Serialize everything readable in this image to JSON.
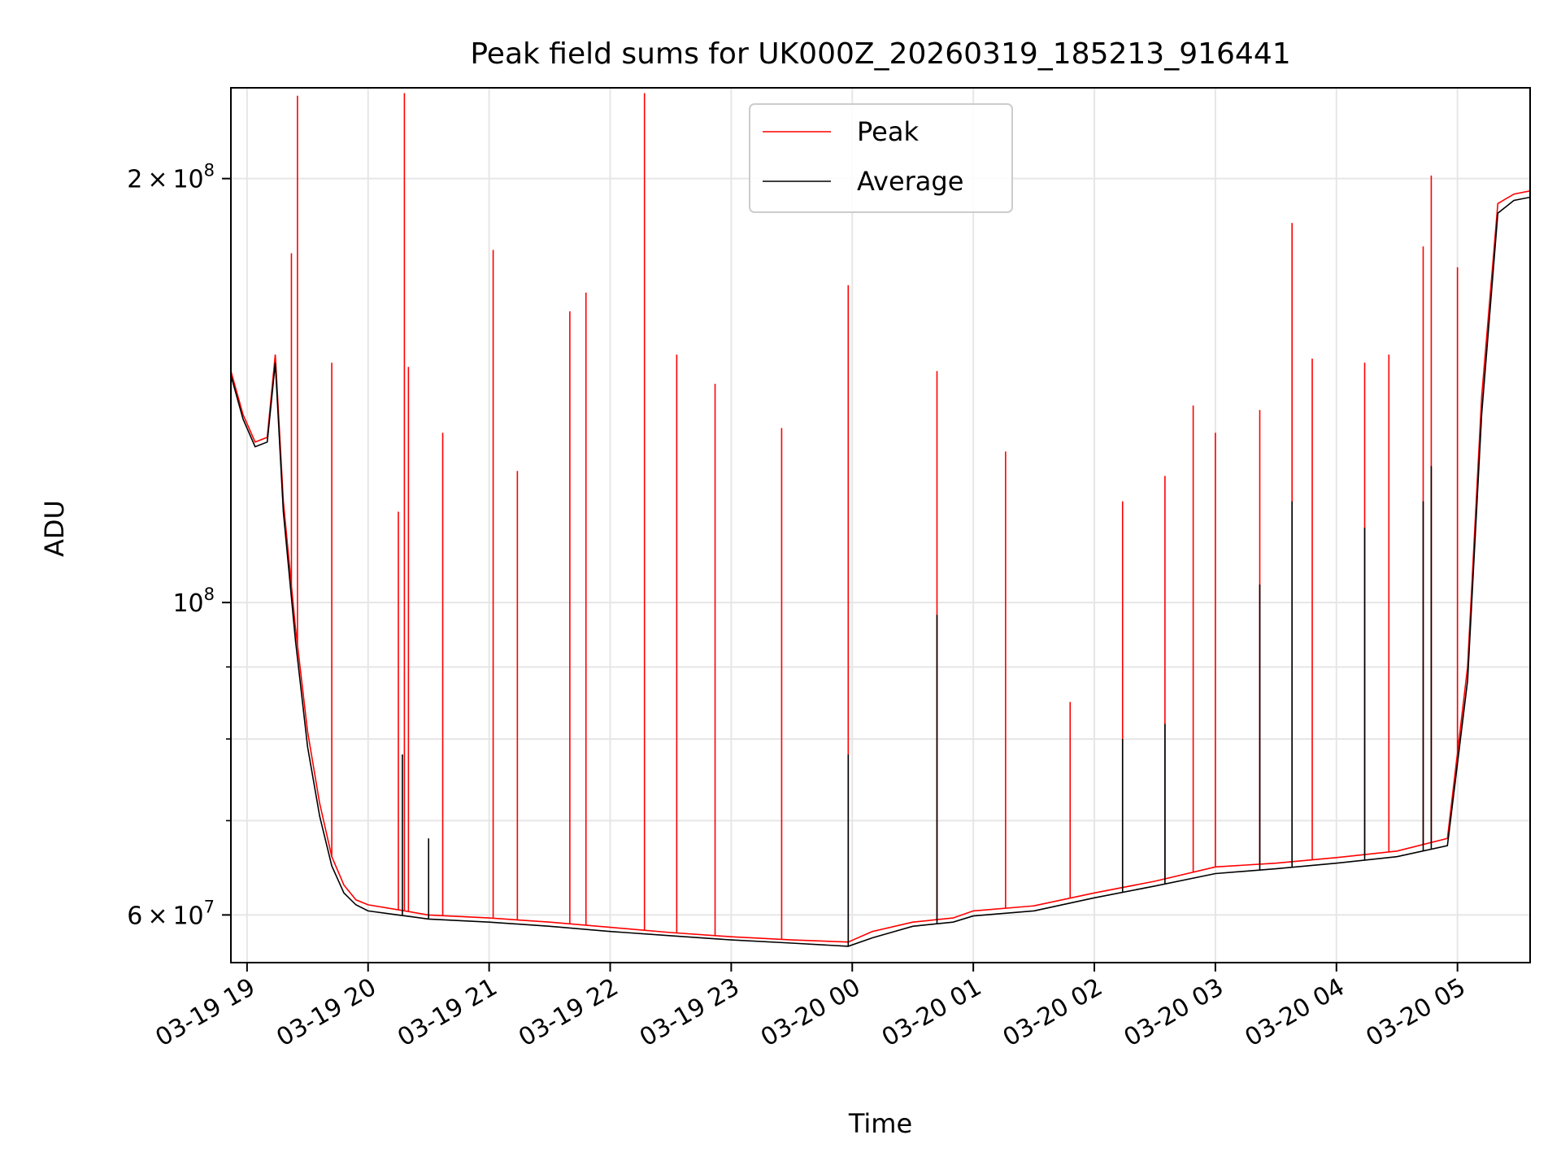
{
  "chart_data": {
    "type": "line",
    "title": "Peak field sums for UK000Z_20260319_185213_916441",
    "xlabel": "Time",
    "ylabel": "ADU",
    "yscale": "log",
    "ylim": [
      55500000,
      232000000
    ],
    "xlim": [
      "2026-03-19 18:52",
      "2026-03-20 05:36"
    ],
    "grid": true,
    "legend_position": "upper center",
    "x_ticks": [
      {
        "t": "2026-03-19 19:00",
        "label": "03-19 19"
      },
      {
        "t": "2026-03-19 20:00",
        "label": "03-19 20"
      },
      {
        "t": "2026-03-19 21:00",
        "label": "03-19 21"
      },
      {
        "t": "2026-03-19 22:00",
        "label": "03-19 22"
      },
      {
        "t": "2026-03-19 23:00",
        "label": "03-19 23"
      },
      {
        "t": "2026-03-20 00:00",
        "label": "03-20 00"
      },
      {
        "t": "2026-03-20 01:00",
        "label": "03-20 01"
      },
      {
        "t": "2026-03-20 02:00",
        "label": "03-20 02"
      },
      {
        "t": "2026-03-20 03:00",
        "label": "03-20 03"
      },
      {
        "t": "2026-03-20 04:00",
        "label": "03-20 04"
      },
      {
        "t": "2026-03-20 05:00",
        "label": "03-20 05"
      }
    ],
    "y_major_ticks": [
      {
        "value": 60000000,
        "mantissa": "6",
        "exp": "7"
      },
      {
        "value": 100000000,
        "mantissa": "",
        "exp": "8"
      },
      {
        "value": 200000000,
        "mantissa": "2",
        "exp": "8"
      }
    ],
    "y_minor_ticks": [
      70000000,
      80000000,
      90000000
    ],
    "series": [
      {
        "name": "Peak",
        "color": "#ff0000",
        "data": [
          [
            "2026-03-19 18:52",
            146000000
          ],
          [
            "2026-03-19 18:58",
            136000000
          ],
          [
            "2026-03-19 19:04",
            130000000
          ],
          [
            "2026-03-19 19:10",
            131000000
          ],
          [
            "2026-03-19 19:14",
            150000000
          ],
          [
            "2026-03-19 19:18",
            118000000
          ],
          [
            "2026-03-19 19:24",
            96000000
          ],
          [
            "2026-03-19 19:30",
            81000000
          ],
          [
            "2026-03-19 19:36",
            72000000
          ],
          [
            "2026-03-19 19:42",
            66000000
          ],
          [
            "2026-03-19 19:48",
            63000000
          ],
          [
            "2026-03-19 19:54",
            61500000
          ],
          [
            "2026-03-19 20:00",
            61000000
          ],
          [
            "2026-03-19 20:15",
            60500000
          ],
          [
            "2026-03-19 20:30",
            60000000
          ],
          [
            "2026-03-19 21:00",
            59700000
          ],
          [
            "2026-03-19 21:30",
            59300000
          ],
          [
            "2026-03-19 22:00",
            58800000
          ],
          [
            "2026-03-19 22:30",
            58300000
          ],
          [
            "2026-03-19 23:00",
            57900000
          ],
          [
            "2026-03-19 23:30",
            57600000
          ],
          [
            "2026-03-19 23:58",
            57400000
          ],
          [
            "2026-03-20 00:10",
            58400000
          ],
          [
            "2026-03-20 00:30",
            59300000
          ],
          [
            "2026-03-20 00:50",
            59700000
          ],
          [
            "2026-03-20 01:00",
            60400000
          ],
          [
            "2026-03-20 01:30",
            60900000
          ],
          [
            "2026-03-20 02:00",
            62200000
          ],
          [
            "2026-03-20 02:30",
            63400000
          ],
          [
            "2026-03-20 03:00",
            64900000
          ],
          [
            "2026-03-20 03:30",
            65300000
          ],
          [
            "2026-03-20 04:00",
            65900000
          ],
          [
            "2026-03-20 04:30",
            66600000
          ],
          [
            "2026-03-20 04:55",
            68000000
          ],
          [
            "2026-03-20 05:05",
            90000000
          ],
          [
            "2026-03-20 05:12",
            140000000
          ],
          [
            "2026-03-20 05:20",
            192000000
          ],
          [
            "2026-03-20 05:28",
            195000000
          ],
          [
            "2026-03-20 05:36",
            196000000
          ]
        ],
        "spikes": [
          [
            "2026-03-19 19:22",
            177000000
          ],
          [
            "2026-03-19 19:25",
            229000000
          ],
          [
            "2026-03-19 19:42",
            148000000
          ],
          [
            "2026-03-19 20:15",
            116000000
          ],
          [
            "2026-03-19 20:18",
            230000000
          ],
          [
            "2026-03-19 20:20",
            147000000
          ],
          [
            "2026-03-19 20:37",
            132000000
          ],
          [
            "2026-03-19 21:02",
            178000000
          ],
          [
            "2026-03-19 21:14",
            124000000
          ],
          [
            "2026-03-19 21:40",
            161000000
          ],
          [
            "2026-03-19 21:48",
            166000000
          ],
          [
            "2026-03-19 22:17",
            230000000
          ],
          [
            "2026-03-19 22:33",
            150000000
          ],
          [
            "2026-03-19 22:52",
            143000000
          ],
          [
            "2026-03-19 23:25",
            133000000
          ],
          [
            "2026-03-19 23:58",
            168000000
          ],
          [
            "2026-03-20 00:42",
            146000000
          ],
          [
            "2026-03-20 01:16",
            128000000
          ],
          [
            "2026-03-20 01:48",
            85000000
          ],
          [
            "2026-03-20 02:14",
            118000000
          ],
          [
            "2026-03-20 02:35",
            123000000
          ],
          [
            "2026-03-20 02:49",
            138000000
          ],
          [
            "2026-03-20 03:00",
            132000000
          ],
          [
            "2026-03-20 03:22",
            137000000
          ],
          [
            "2026-03-20 03:38",
            186000000
          ],
          [
            "2026-03-20 03:48",
            149000000
          ],
          [
            "2026-03-20 04:14",
            148000000
          ],
          [
            "2026-03-20 04:26",
            150000000
          ],
          [
            "2026-03-20 04:43",
            179000000
          ],
          [
            "2026-03-20 04:47",
            201000000
          ],
          [
            "2026-03-20 05:00",
            173000000
          ]
        ]
      },
      {
        "name": "Average",
        "color": "#000000",
        "data": [
          [
            "2026-03-19 18:52",
            145000000
          ],
          [
            "2026-03-19 18:58",
            135000000
          ],
          [
            "2026-03-19 19:04",
            129000000
          ],
          [
            "2026-03-19 19:10",
            130000000
          ],
          [
            "2026-03-19 19:14",
            148000000
          ],
          [
            "2026-03-19 19:18",
            116000000
          ],
          [
            "2026-03-19 19:24",
            94000000
          ],
          [
            "2026-03-19 19:30",
            79000000
          ],
          [
            "2026-03-19 19:36",
            70500000
          ],
          [
            "2026-03-19 19:42",
            65000000
          ],
          [
            "2026-03-19 19:48",
            62200000
          ],
          [
            "2026-03-19 19:54",
            61000000
          ],
          [
            "2026-03-19 20:00",
            60400000
          ],
          [
            "2026-03-19 20:15",
            60000000
          ],
          [
            "2026-03-19 20:30",
            59600000
          ],
          [
            "2026-03-19 21:00",
            59300000
          ],
          [
            "2026-03-19 21:30",
            58900000
          ],
          [
            "2026-03-19 22:00",
            58400000
          ],
          [
            "2026-03-19 22:30",
            58000000
          ],
          [
            "2026-03-19 23:00",
            57600000
          ],
          [
            "2026-03-19 23:30",
            57300000
          ],
          [
            "2026-03-19 23:58",
            57000000
          ],
          [
            "2026-03-20 00:10",
            57800000
          ],
          [
            "2026-03-20 00:30",
            58900000
          ],
          [
            "2026-03-20 00:50",
            59300000
          ],
          [
            "2026-03-20 01:00",
            59900000
          ],
          [
            "2026-03-20 01:30",
            60400000
          ],
          [
            "2026-03-20 02:00",
            61700000
          ],
          [
            "2026-03-20 02:30",
            62900000
          ],
          [
            "2026-03-20 03:00",
            64200000
          ],
          [
            "2026-03-20 03:30",
            64700000
          ],
          [
            "2026-03-20 04:00",
            65300000
          ],
          [
            "2026-03-20 04:30",
            66000000
          ],
          [
            "2026-03-20 04:55",
            67200000
          ],
          [
            "2026-03-20 05:05",
            88000000
          ],
          [
            "2026-03-20 05:12",
            136000000
          ],
          [
            "2026-03-20 05:20",
            189000000
          ],
          [
            "2026-03-20 05:28",
            193000000
          ],
          [
            "2026-03-20 05:36",
            194000000
          ]
        ],
        "spikes": [
          [
            "2026-03-19 20:17",
            78000000
          ],
          [
            "2026-03-19 20:30",
            68000000
          ],
          [
            "2026-03-19 23:58",
            78000000
          ],
          [
            "2026-03-20 00:42",
            98000000
          ],
          [
            "2026-03-20 02:14",
            80000000
          ],
          [
            "2026-03-20 02:35",
            82000000
          ],
          [
            "2026-03-20 03:22",
            103000000
          ],
          [
            "2026-03-20 03:38",
            118000000
          ],
          [
            "2026-03-20 04:14",
            113000000
          ],
          [
            "2026-03-20 04:43",
            118000000
          ],
          [
            "2026-03-20 04:47",
            125000000
          ]
        ]
      }
    ]
  }
}
